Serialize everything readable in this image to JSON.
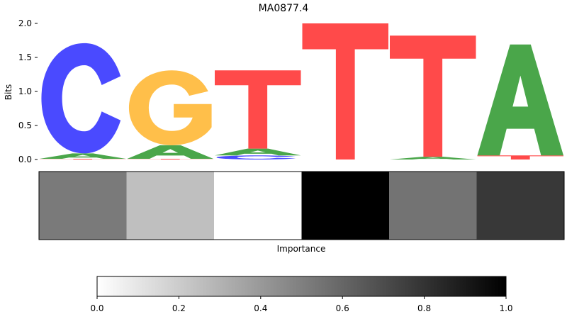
{
  "chart_data": [
    {
      "type": "sequence-logo",
      "title": "MA0877.4",
      "ylabel": "Bits",
      "ylim": [
        0,
        2.0
      ],
      "yticks": [
        "0.0",
        "0.5",
        "1.0",
        "1.5",
        "2.0"
      ],
      "colors": {
        "A": "#4aa64a",
        "C": "#4a4aff",
        "G": "#ffbf4a",
        "T": "#ff4a4a"
      },
      "positions": [
        {
          "stack": [
            {
              "base": "T",
              "bits": 0.01
            },
            {
              "base": "A",
              "bits": 0.08
            },
            {
              "base": "C",
              "bits": 1.62
            }
          ]
        },
        {
          "stack": [
            {
              "base": "T",
              "bits": 0.01
            },
            {
              "base": "A",
              "bits": 0.2
            },
            {
              "base": "G",
              "bits": 1.1
            }
          ]
        },
        {
          "stack": [
            {
              "base": "C",
              "bits": 0.06
            },
            {
              "base": "A",
              "bits": 0.1
            },
            {
              "base": "T",
              "bits": 1.15
            }
          ]
        },
        {
          "stack": [
            {
              "base": "T",
              "bits": 2.0
            }
          ]
        },
        {
          "stack": [
            {
              "base": "A",
              "bits": 0.04
            },
            {
              "base": "T",
              "bits": 1.78
            }
          ]
        },
        {
          "stack": [
            {
              "base": "T",
              "bits": 0.06
            },
            {
              "base": "A",
              "bits": 1.63
            }
          ]
        }
      ]
    },
    {
      "type": "heatmap",
      "xlabel": "Importance",
      "values": [
        0.52,
        0.25,
        0.0,
        1.0,
        0.55,
        0.78
      ]
    },
    {
      "type": "colorbar",
      "range": [
        0,
        1.0
      ],
      "ticks": [
        "0.0",
        "0.2",
        "0.4",
        "0.6",
        "0.8",
        "1.0"
      ]
    }
  ]
}
